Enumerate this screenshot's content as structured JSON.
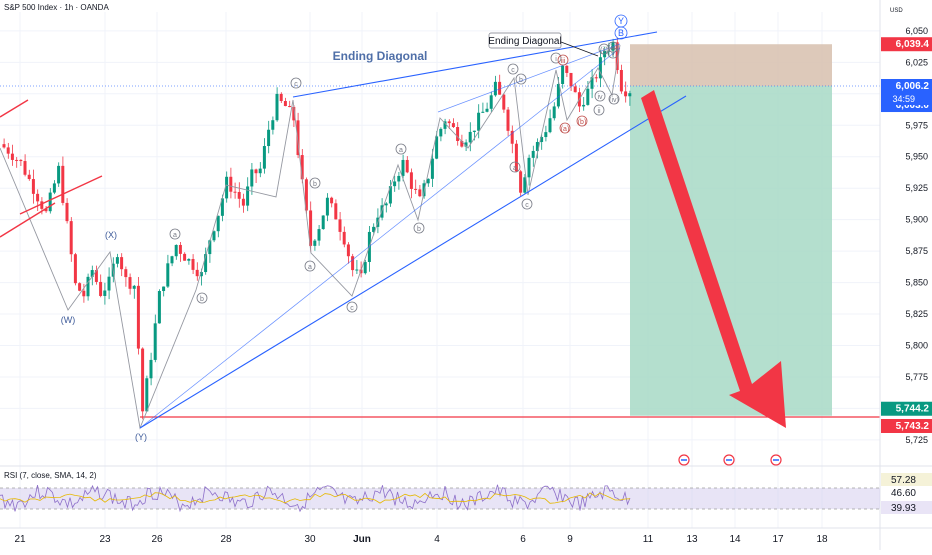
{
  "header": {
    "title": "S&P 500 Index · 1h · OANDA"
  },
  "currency": "USD",
  "rsi_header": "RSI (7, close, SMA, 14, 2)",
  "colors": {
    "up": "#089981",
    "down": "#f23645",
    "wave": "#9598a1",
    "trendline": "#2962ff",
    "label_blue": "#4f6fa8",
    "stop_zone": "#d7bfae",
    "target_zone": "#a7d9c6",
    "arrow": "#f23645",
    "rsi": "#8d6fc9",
    "rsi_band": "#d6cdee"
  },
  "chart_data": {
    "type": "candlestick",
    "timeframe": "1h",
    "x_ticks": [
      "21",
      "23",
      "26",
      "28",
      "30",
      "Jun",
      "4",
      "6",
      "9",
      "11",
      "13",
      "14",
      "17",
      "18"
    ],
    "y_ticks": [
      5725,
      5750,
      5775,
      5800,
      5825,
      5850,
      5875,
      5900,
      5925,
      5950,
      5975,
      6000,
      6025,
      6050
    ],
    "ylim": [
      5713,
      6065
    ],
    "price_path": [
      [
        0,
        5960
      ],
      [
        2,
        5955
      ],
      [
        5,
        5945
      ],
      [
        8,
        5925
      ],
      [
        11,
        5905
      ],
      [
        14,
        5940
      ],
      [
        16,
        5895
      ],
      [
        18,
        5848
      ],
      [
        20,
        5840
      ],
      [
        22,
        5860
      ],
      [
        24,
        5842
      ],
      [
        26,
        5850
      ],
      [
        28,
        5875
      ],
      [
        30,
        5852
      ],
      [
        32,
        5848
      ],
      [
        34,
        5748
      ],
      [
        36,
        5792
      ],
      [
        38,
        5840
      ],
      [
        40,
        5862
      ],
      [
        42,
        5880
      ],
      [
        44,
        5871
      ],
      [
        46,
        5864
      ],
      [
        48,
        5856
      ],
      [
        50,
        5885
      ],
      [
        52,
        5905
      ],
      [
        54,
        5930
      ],
      [
        56,
        5922
      ],
      [
        58,
        5912
      ],
      [
        60,
        5935
      ],
      [
        62,
        5940
      ],
      [
        64,
        5972
      ],
      [
        66,
        5995
      ],
      [
        68,
        5990
      ],
      [
        70,
        5980
      ],
      [
        72,
        5928
      ],
      [
        74,
        5880
      ],
      [
        76,
        5895
      ],
      [
        78,
        5915
      ],
      [
        80,
        5903
      ],
      [
        82,
        5885
      ],
      [
        84,
        5860
      ],
      [
        86,
        5853
      ],
      [
        88,
        5888
      ],
      [
        90,
        5905
      ],
      [
        92,
        5912
      ],
      [
        94,
        5932
      ],
      [
        96,
        5945
      ],
      [
        98,
        5928
      ],
      [
        100,
        5915
      ],
      [
        102,
        5935
      ],
      [
        104,
        5965
      ],
      [
        106,
        5980
      ],
      [
        108,
        5972
      ],
      [
        110,
        5963
      ],
      [
        112,
        5968
      ],
      [
        114,
        5980
      ],
      [
        116,
        5990
      ],
      [
        118,
        6005
      ],
      [
        120,
        5990
      ],
      [
        122,
        5960
      ],
      [
        124,
        5925
      ],
      [
        126,
        5950
      ],
      [
        128,
        5960
      ],
      [
        130,
        5972
      ],
      [
        132,
        5990
      ],
      [
        134,
        6020
      ],
      [
        136,
        6008
      ],
      [
        138,
        5990
      ],
      [
        140,
        6002
      ],
      [
        142,
        6015
      ],
      [
        144,
        6035
      ],
      [
        146,
        6040
      ],
      [
        148,
        6006
      ],
      [
        149,
        6003
      ]
    ],
    "last_price": 6006.2,
    "countdown": "34:59",
    "price_labels": [
      {
        "text": "6,039.4",
        "value": 6039.4,
        "bg": "#f23645"
      },
      {
        "text": "6,006.2",
        "value": 6006.2,
        "bg": "#2962ff"
      },
      {
        "text": "6,003.0",
        "value": 6003.0,
        "bg": "#2962ff"
      },
      {
        "text": "5,744.2",
        "value": 5744.2,
        "bg": "#089981"
      },
      {
        "text": "5,743.2",
        "value": 5743.2,
        "bg": "#f23645"
      }
    ],
    "position": {
      "entry": 6006.2,
      "stop": 6039.4,
      "target": 5744.2
    },
    "support_line_value": 5743.2,
    "pattern_label": "Ending Diagonal",
    "annotation_label": "Ending Diagonal",
    "wave_labels": [
      "(X)",
      "(W)",
      "(Y)",
      "a",
      "b",
      "c",
      "a",
      "b",
      "c",
      "a",
      "b",
      "c",
      "a",
      "b",
      "c",
      "(a)",
      "(b)",
      "(ii)",
      "(iii)",
      "(iv)",
      "i",
      "ii",
      "iii",
      "iv",
      "v",
      "Y",
      "B"
    ],
    "event_icons": 3,
    "rsi": {
      "label": "RSI (7, close, SMA, 14, 2)",
      "values_shown": [
        "57.28",
        "46.60",
        "39.93"
      ],
      "upper_band": 70,
      "lower_band": 30
    }
  }
}
